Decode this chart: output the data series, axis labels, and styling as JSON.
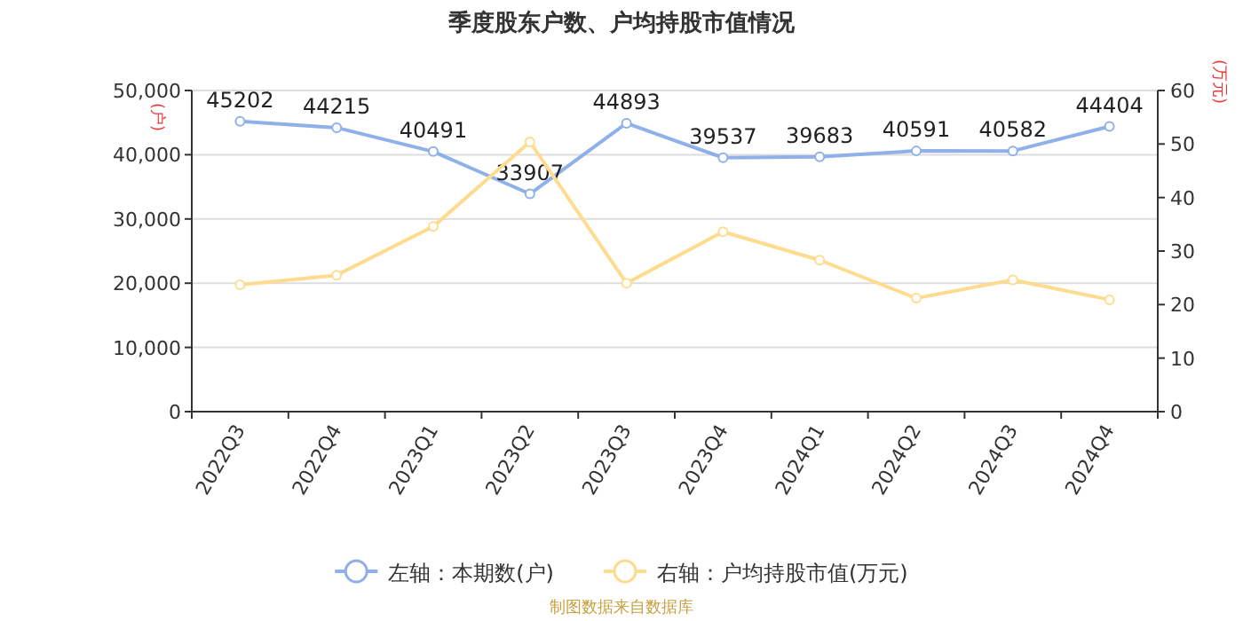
{
  "chart_data": {
    "type": "line",
    "title": "季度股东户数、户均持股市值情况",
    "categories": [
      "2022Q3",
      "2022Q4",
      "2023Q1",
      "2023Q2",
      "2023Q3",
      "2023Q4",
      "2024Q1",
      "2024Q2",
      "2024Q3",
      "2024Q4"
    ],
    "series": [
      {
        "name": "左轴：本期数(户)",
        "color": "#8fb0e8",
        "values": [
          45202,
          44215,
          40491,
          33907,
          44893,
          39537,
          39683,
          40591,
          40582,
          44404
        ],
        "value_labels": [
          "45202",
          "44215",
          "40491",
          "33907",
          "44893",
          "39537",
          "39683",
          "40591",
          "40582",
          "44404"
        ]
      },
      {
        "name": "右轴：户均持股市值(万元)",
        "color": "#fddc8f",
        "axis": "y2",
        "values": [
          23.7,
          25.5,
          34.6,
          50.4,
          24.0,
          33.6,
          28.3,
          21.2,
          24.6,
          20.9
        ]
      }
    ],
    "ylabel": "(户)",
    "y2label": "(万元)",
    "ylim": [
      0,
      50000
    ],
    "yticks": [
      {
        "value": 0,
        "label": "0"
      },
      {
        "value": 10000,
        "label": "10,000"
      },
      {
        "value": 20000,
        "label": "20,000"
      },
      {
        "value": 30000,
        "label": "30,000"
      },
      {
        "value": 40000,
        "label": "40,000"
      },
      {
        "value": 50000,
        "label": "50,000"
      }
    ],
    "y2lim": [
      0,
      60
    ],
    "y2ticks": [
      0,
      10,
      20,
      30,
      40,
      50,
      60
    ],
    "grid": "y",
    "legend": "bottom",
    "marker": "circle",
    "line_style": "solid",
    "annotations": [
      "制图数据来自数据库"
    ]
  }
}
